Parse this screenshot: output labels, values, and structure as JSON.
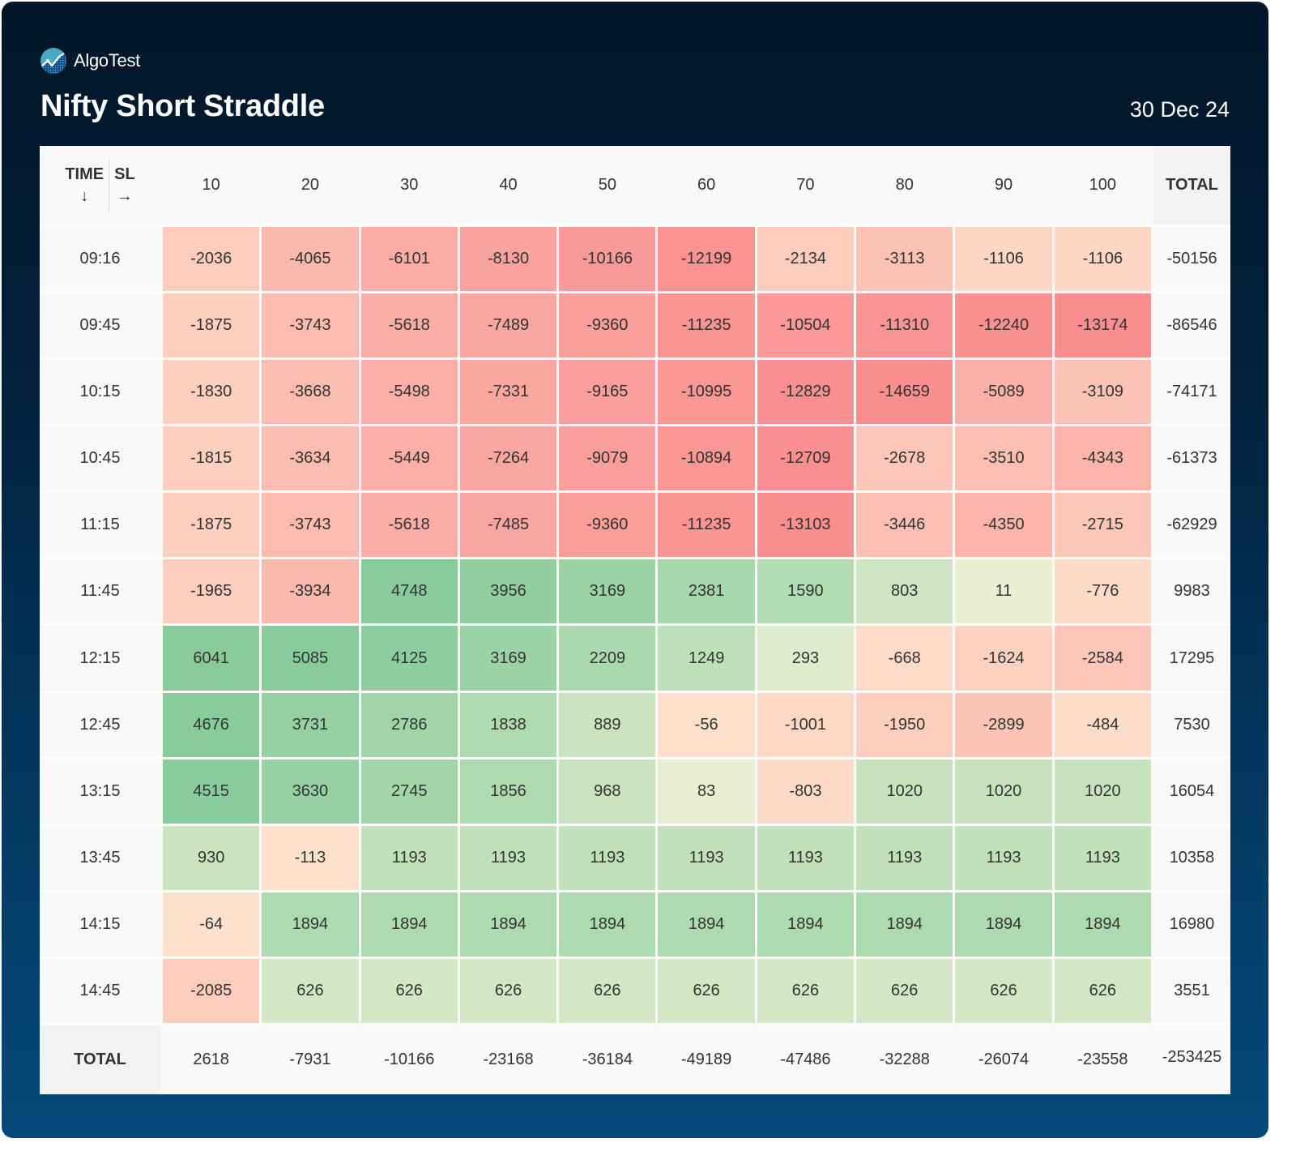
{
  "brand": {
    "name": "AlgoTest",
    "logo_icon": "algotest-logo-icon"
  },
  "title": "Nifty Short Straddle",
  "date": "30 Dec 24",
  "table": {
    "corner": {
      "time_label": "TIME",
      "time_arrow": "↓",
      "sl_label": "SL",
      "sl_arrow": "→"
    },
    "columns": [
      "10",
      "20",
      "30",
      "40",
      "50",
      "60",
      "70",
      "80",
      "90",
      "100"
    ],
    "total_label": "TOTAL",
    "rows": [
      {
        "time": "09:16",
        "values": [
          "-2036",
          "-4065",
          "-6101",
          "-8130",
          "-10166",
          "-12199",
          "-2134",
          "-3113",
          "-1106",
          "-1106"
        ],
        "total": "-50156"
      },
      {
        "time": "09:45",
        "values": [
          "-1875",
          "-3743",
          "-5618",
          "-7489",
          "-9360",
          "-11235",
          "-10504",
          "-11310",
          "-12240",
          "-13174"
        ],
        "total": "-86546"
      },
      {
        "time": "10:15",
        "values": [
          "-1830",
          "-3668",
          "-5498",
          "-7331",
          "-9165",
          "-10995",
          "-12829",
          "-14659",
          "-5089",
          "-3109"
        ],
        "total": "-74171"
      },
      {
        "time": "10:45",
        "values": [
          "-1815",
          "-3634",
          "-5449",
          "-7264",
          "-9079",
          "-10894",
          "-12709",
          "-2678",
          "-3510",
          "-4343"
        ],
        "total": "-61373"
      },
      {
        "time": "11:15",
        "values": [
          "-1875",
          "-3743",
          "-5618",
          "-7485",
          "-9360",
          "-11235",
          "-13103",
          "-3446",
          "-4350",
          "-2715"
        ],
        "total": "-62929"
      },
      {
        "time": "11:45",
        "values": [
          "-1965",
          "-3934",
          "4748",
          "3956",
          "3169",
          "2381",
          "1590",
          "803",
          "11",
          "-776"
        ],
        "total": "9983"
      },
      {
        "time": "12:15",
        "values": [
          "6041",
          "5085",
          "4125",
          "3169",
          "2209",
          "1249",
          "293",
          "-668",
          "-1624",
          "-2584"
        ],
        "total": "17295"
      },
      {
        "time": "12:45",
        "values": [
          "4676",
          "3731",
          "2786",
          "1838",
          "889",
          "-56",
          "-1001",
          "-1950",
          "-2899",
          "-484"
        ],
        "total": "7530"
      },
      {
        "time": "13:15",
        "values": [
          "4515",
          "3630",
          "2745",
          "1856",
          "968",
          "83",
          "-803",
          "1020",
          "1020",
          "1020"
        ],
        "total": "16054"
      },
      {
        "time": "13:45",
        "values": [
          "930",
          "-113",
          "1193",
          "1193",
          "1193",
          "1193",
          "1193",
          "1193",
          "1193",
          "1193"
        ],
        "total": "10358"
      },
      {
        "time": "14:15",
        "values": [
          "-64",
          "1894",
          "1894",
          "1894",
          "1894",
          "1894",
          "1894",
          "1894",
          "1894",
          "1894"
        ],
        "total": "16980"
      },
      {
        "time": "14:45",
        "values": [
          "-2085",
          "626",
          "626",
          "626",
          "626",
          "626",
          "626",
          "626",
          "626",
          "626"
        ],
        "total": "3551"
      }
    ],
    "column_totals": [
      "2618",
      "-7931",
      "-10166",
      "-23168",
      "-36184",
      "-49189",
      "-47486",
      "-32288",
      "-26074",
      "-23558"
    ],
    "grand_total": "-253425"
  },
  "colors": {
    "neg_light": "#fde2cd",
    "neg_mid": "#fbb3a9",
    "neg_dark": "#f98e8f",
    "pos_light": "#eaefd2",
    "pos_mid": "#b2dcb2",
    "pos_dark": "#89cc9b"
  }
}
